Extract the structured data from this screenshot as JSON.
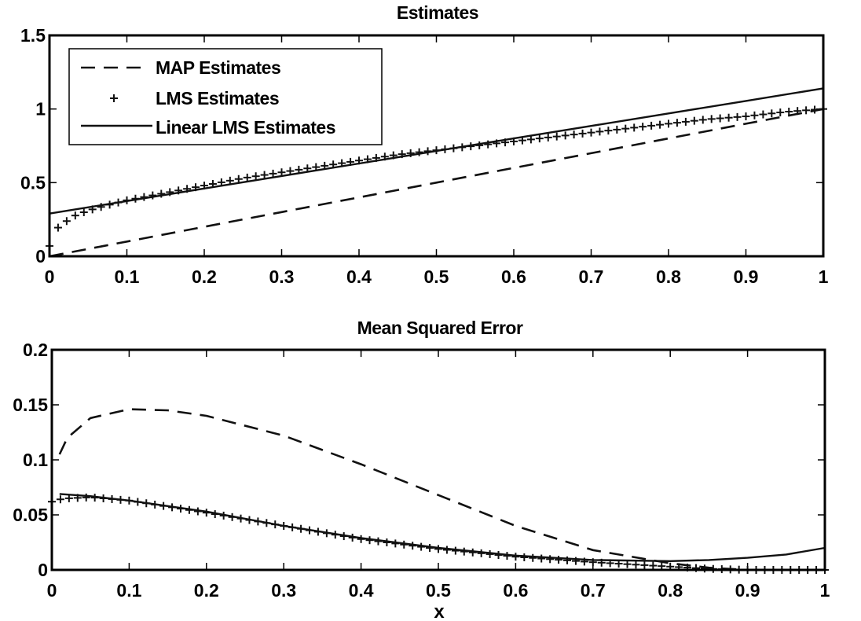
{
  "chart_data": [
    {
      "type": "line",
      "title": "Estimates",
      "xlabel": "",
      "ylabel": "",
      "xlim": [
        0,
        1
      ],
      "ylim": [
        0,
        1.5
      ],
      "xticks": [
        "0",
        "0.1",
        "0.2",
        "0.3",
        "0.4",
        "0.5",
        "0.6",
        "0.7",
        "0.8",
        "0.9",
        "1"
      ],
      "yticks": [
        "0",
        "0.5",
        "1",
        "1.5"
      ],
      "grid": false,
      "legend_position": "top-left",
      "legend": [
        "MAP Estimates",
        "LMS Estimates",
        "Linear LMS Estimates"
      ],
      "series": [
        {
          "name": "MAP Estimates",
          "style": "dashed",
          "x": [
            0.0,
            0.02,
            0.1,
            0.2,
            0.3,
            0.4,
            0.5,
            0.6,
            0.7,
            0.8,
            0.9,
            1.0
          ],
          "y": [
            0.0,
            0.02,
            0.1,
            0.2,
            0.3,
            0.4,
            0.5,
            0.6,
            0.7,
            0.8,
            0.9,
            1.0
          ]
        },
        {
          "name": "LMS Estimates",
          "style": "plus-markers",
          "x": [
            0.0,
            0.005,
            0.01,
            0.02,
            0.03,
            0.05,
            0.07,
            0.1,
            0.15,
            0.2,
            0.25,
            0.3,
            0.35,
            0.4,
            0.45,
            0.5,
            0.55,
            0.6,
            0.65,
            0.7,
            0.75,
            0.8,
            0.85,
            0.9,
            0.95,
            1.0
          ],
          "y": [
            0.07,
            0.12,
            0.19,
            0.23,
            0.27,
            0.31,
            0.34,
            0.38,
            0.43,
            0.48,
            0.53,
            0.57,
            0.61,
            0.65,
            0.69,
            0.72,
            0.75,
            0.78,
            0.81,
            0.84,
            0.87,
            0.9,
            0.93,
            0.95,
            0.98,
            1.0
          ]
        },
        {
          "name": "Linear LMS Estimates",
          "style": "solid",
          "x": [
            0.0,
            0.1,
            0.2,
            0.3,
            0.4,
            0.5,
            0.6,
            0.7,
            0.8,
            0.9,
            1.0
          ],
          "y": [
            0.29,
            0.375,
            0.46,
            0.545,
            0.63,
            0.715,
            0.8,
            0.885,
            0.97,
            1.055,
            1.14
          ]
        }
      ]
    },
    {
      "type": "line",
      "title": "Mean Squared Error",
      "xlabel": "x",
      "ylabel": "",
      "xlim": [
        0,
        1
      ],
      "ylim": [
        0,
        0.2
      ],
      "xticks": [
        "0",
        "0.1",
        "0.2",
        "0.3",
        "0.4",
        "0.5",
        "0.6",
        "0.7",
        "0.8",
        "0.9",
        "1"
      ],
      "yticks": [
        "0",
        "0.05",
        "0.1",
        "0.15",
        "0.2"
      ],
      "grid": false,
      "series": [
        {
          "name": "MAP Estimates",
          "style": "dashed",
          "x": [
            0.01,
            0.02,
            0.05,
            0.1,
            0.15,
            0.2,
            0.3,
            0.4,
            0.5,
            0.6,
            0.7,
            0.8,
            0.85,
            0.9
          ],
          "y": [
            0.105,
            0.12,
            0.138,
            0.146,
            0.145,
            0.14,
            0.122,
            0.096,
            0.068,
            0.04,
            0.018,
            0.006,
            0.002,
            0.0
          ]
        },
        {
          "name": "LMS Estimates",
          "style": "plus-markers",
          "x": [
            0.0,
            0.01,
            0.02,
            0.05,
            0.1,
            0.2,
            0.3,
            0.4,
            0.5,
            0.6,
            0.7,
            0.8,
            0.85,
            0.9,
            0.95,
            1.0
          ],
          "y": [
            0.062,
            0.064,
            0.065,
            0.066,
            0.063,
            0.052,
            0.04,
            0.028,
            0.019,
            0.012,
            0.007,
            0.003,
            0.001,
            0.0,
            0.0,
            0.0
          ]
        },
        {
          "name": "Linear LMS Estimates",
          "style": "solid",
          "x": [
            0.01,
            0.05,
            0.1,
            0.2,
            0.3,
            0.4,
            0.5,
            0.6,
            0.7,
            0.8,
            0.85,
            0.9,
            0.95,
            1.0
          ],
          "y": [
            0.069,
            0.067,
            0.063,
            0.053,
            0.04,
            0.029,
            0.02,
            0.013,
            0.009,
            0.008,
            0.009,
            0.011,
            0.014,
            0.02
          ]
        }
      ]
    }
  ]
}
